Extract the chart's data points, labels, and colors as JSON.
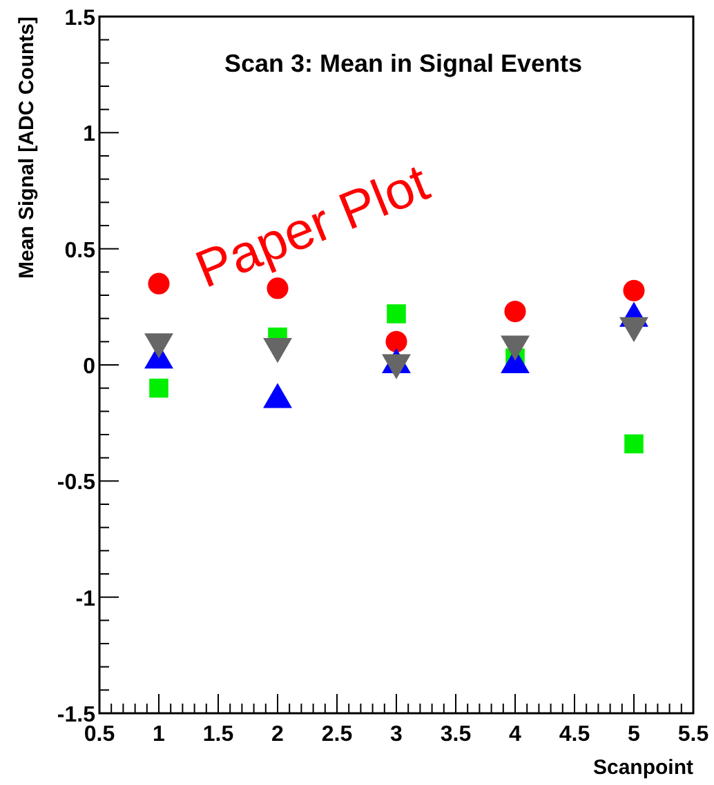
{
  "chart_data": {
    "type": "scatter",
    "title": "Scan 3: Mean in Signal Events",
    "xlabel": "Scanpoint",
    "ylabel": "Mean Signal [ADC Counts]",
    "annotations": [
      "Paper Plot"
    ],
    "x": [
      1,
      2,
      3,
      4,
      5
    ],
    "series": [
      {
        "color": "#ff0000",
        "marker": "circle",
        "values": [
          0.35,
          0.33,
          0.1,
          0.23,
          0.32
        ]
      },
      {
        "color": "#00ee00",
        "marker": "square",
        "values": [
          -0.1,
          0.12,
          0.22,
          0.03,
          -0.34
        ]
      },
      {
        "color": "#0000ff",
        "marker": "triangle",
        "values": [
          0.02,
          -0.15,
          0.0,
          0.0,
          0.2
        ]
      },
      {
        "color": "#666666",
        "marker": "triangle-down",
        "values": [
          0.1,
          0.08,
          0.01,
          0.09,
          0.17
        ]
      }
    ],
    "xlim": [
      0.5,
      5.5
    ],
    "xticks": [
      0.5,
      1,
      1.5,
      2,
      2.5,
      3,
      3.5,
      4,
      4.5,
      5,
      5.5
    ],
    "ylim": [
      -1.5,
      1.5
    ],
    "yticks": [
      -1.5,
      -1,
      -0.5,
      0,
      0.5,
      1,
      1.5
    ],
    "grid": false
  }
}
